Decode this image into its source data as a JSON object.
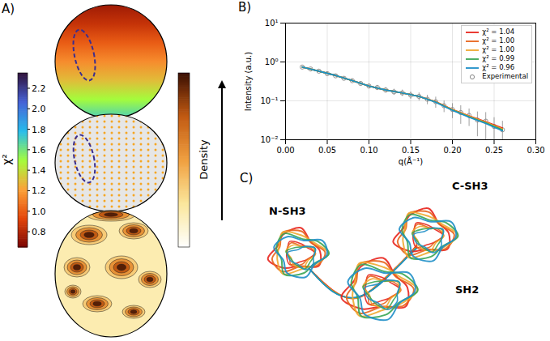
{
  "panel_letters": [
    "A)",
    "B)",
    "C)"
  ],
  "chart_data": {
    "type": "line",
    "x_label": "q(Å⁻¹)",
    "y_label": "Intensity (a.u.)",
    "x": [
      0.02,
      0.04,
      0.06,
      0.08,
      0.1,
      0.12,
      0.14,
      0.16,
      0.18,
      0.2,
      0.22,
      0.24,
      0.26
    ],
    "series": [
      {
        "name": "χ² = 1.04",
        "color": "#e8251d",
        "values": [
          0.74,
          0.58,
          0.45,
          0.33,
          0.24,
          0.19,
          0.16,
          0.13,
          0.095,
          0.06,
          0.041,
          0.029,
          0.02
        ]
      },
      {
        "name": "χ² = 1.00",
        "color": "#e8641b",
        "values": [
          0.74,
          0.58,
          0.45,
          0.33,
          0.24,
          0.19,
          0.16,
          0.13,
          0.094,
          0.06,
          0.04,
          0.028,
          0.019
        ]
      },
      {
        "name": "χ² = 1.00",
        "color": "#f0a830",
        "values": [
          0.74,
          0.58,
          0.45,
          0.33,
          0.24,
          0.19,
          0.16,
          0.13,
          0.094,
          0.059,
          0.04,
          0.028,
          0.019
        ]
      },
      {
        "name": "χ² = 0.99",
        "color": "#3aa655",
        "values": [
          0.74,
          0.58,
          0.45,
          0.33,
          0.24,
          0.19,
          0.16,
          0.13,
          0.093,
          0.058,
          0.039,
          0.027,
          0.018
        ]
      },
      {
        "name": "χ² = 0.96",
        "color": "#1f8fc8",
        "values": [
          0.74,
          0.58,
          0.45,
          0.33,
          0.24,
          0.19,
          0.16,
          0.13,
          0.092,
          0.057,
          0.038,
          0.026,
          0.017
        ]
      },
      {
        "name": "Experimental",
        "type": "scatter",
        "marker": "circle",
        "color": "#888888",
        "x": [
          0.02,
          0.03,
          0.04,
          0.05,
          0.06,
          0.07,
          0.08,
          0.09,
          0.1,
          0.11,
          0.12,
          0.13,
          0.14,
          0.15,
          0.16,
          0.17,
          0.18,
          0.19,
          0.2,
          0.21,
          0.22,
          0.23,
          0.24,
          0.25,
          0.26
        ],
        "values": [
          0.74,
          0.66,
          0.58,
          0.5,
          0.44,
          0.38,
          0.33,
          0.28,
          0.24,
          0.22,
          0.19,
          0.17,
          0.16,
          0.14,
          0.13,
          0.11,
          0.095,
          0.075,
          0.06,
          0.05,
          0.042,
          0.032,
          0.03,
          0.022,
          0.018
        ],
        "errors": [
          0.04,
          0.03,
          0.03,
          0.03,
          0.03,
          0.03,
          0.03,
          0.03,
          0.03,
          0.03,
          0.03,
          0.03,
          0.03,
          0.03,
          0.03,
          0.03,
          0.03,
          0.025,
          0.025,
          0.025,
          0.02,
          0.02,
          0.02,
          0.015,
          0.012
        ]
      }
    ],
    "xlim": [
      0,
      0.3
    ],
    "ylim": [
      0.01,
      10
    ],
    "xticks": [
      {
        "value": 0,
        "label": "0.00"
      },
      0.05,
      {
        "value": 0.1,
        "label": "0.10"
      },
      0.15,
      {
        "value": 0.2,
        "label": "0.20"
      },
      0.25,
      {
        "value": 0.3,
        "label": "0.30"
      }
    ],
    "yticks": [
      {
        "value": 0.01,
        "label": "10⁻²"
      },
      {
        "value": 0.1,
        "label": "10⁻¹"
      },
      {
        "value": 1,
        "label": "10⁰"
      },
      {
        "value": 10,
        "label": "10¹"
      }
    ],
    "log": "y",
    "grid": true,
    "legend": "upper right"
  },
  "panel_a": {
    "colorbar_chi2": {
      "label": "χ²",
      "range": [
        0.65,
        2.35
      ],
      "ticks": [
        0.8,
        {
          "value": 1,
          "label": "1.0"
        },
        1.2,
        1.4,
        1.6,
        1.8,
        {
          "value": 2,
          "label": "2.0"
        },
        2.2
      ],
      "colors": [
        "#7a0403",
        "#e4460a",
        "#fba238",
        "#a4fc3c",
        "#28bceb",
        "#4662d7",
        "#30123b"
      ]
    },
    "colorbar_density": {
      "label": "Density",
      "colors": [
        "#ffffff",
        "#fbe79c",
        "#f0a040",
        "#c25a12",
        "#3b0f02"
      ]
    },
    "chi2_top_to_bottom": [
      0.75,
      0.85,
      1.0,
      1.15,
      1.3,
      1.5,
      1.7
    ]
  },
  "panel_c": {
    "labels": [
      "N-SH3",
      "C-SH3",
      "SH2"
    ]
  }
}
